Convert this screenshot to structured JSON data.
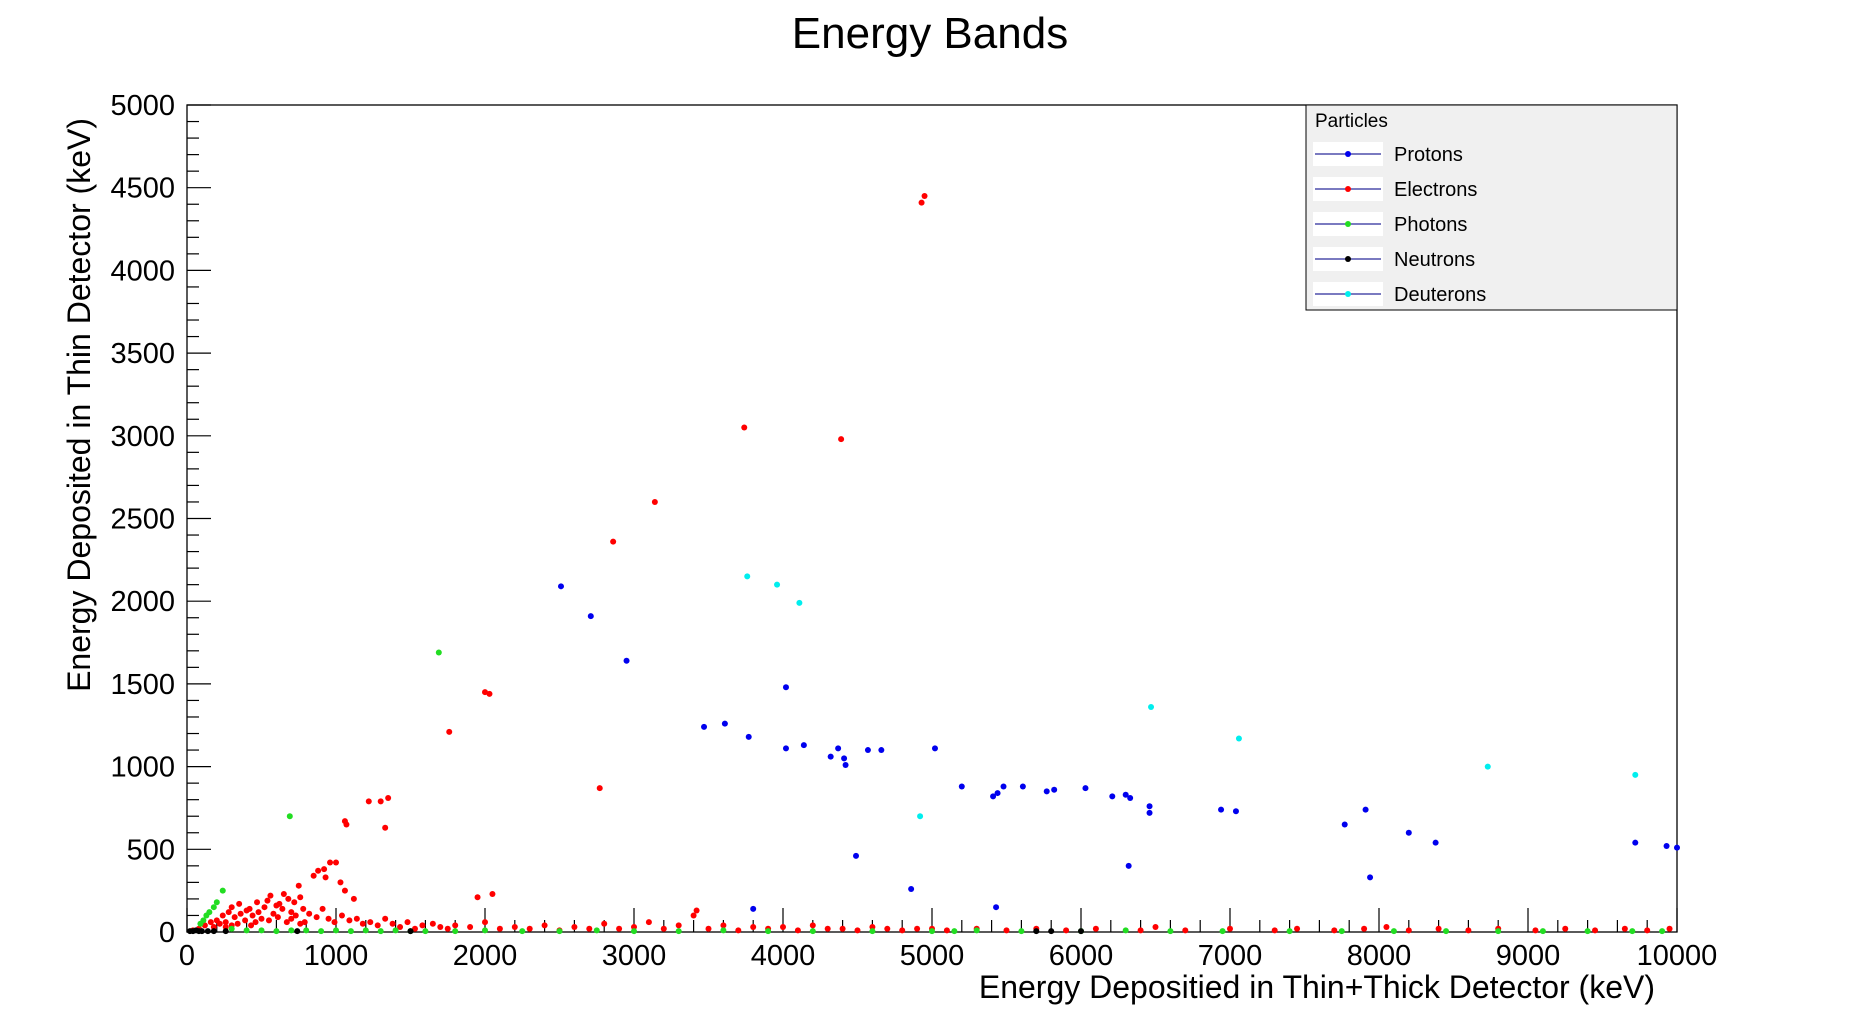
{
  "chart_data": {
    "type": "scatter",
    "title": "Energy Bands",
    "xlabel": "Energy Depositied in Thin+Thick Detector (keV)",
    "ylabel": "Energy Deposited in Thin Detector (keV)",
    "xlim": [
      0,
      10000
    ],
    "ylim": [
      0,
      5000
    ],
    "x_ticks": [
      0,
      1000,
      2000,
      3000,
      4000,
      5000,
      6000,
      7000,
      8000,
      9000,
      10000
    ],
    "y_ticks": [
      0,
      500,
      1000,
      1500,
      2000,
      2500,
      3000,
      3500,
      4000,
      4500,
      5000
    ],
    "grid": false,
    "legend": {
      "title": "Particles",
      "position": "top-right",
      "entries": [
        "Protons",
        "Electrons",
        "Photons",
        "Neutrons",
        "Deuterons"
      ]
    },
    "colors": {
      "Protons": "#0000ee",
      "Electrons": "#ff0000",
      "Photons": "#22dd22",
      "Neutrons": "#000000",
      "Deuterons": "#00eeee"
    },
    "series": [
      {
        "name": "Protons",
        "points": [
          [
            2510,
            2090
          ],
          [
            2710,
            1910
          ],
          [
            2950,
            1640
          ],
          [
            3470,
            1240
          ],
          [
            3610,
            1260
          ],
          [
            3770,
            1180
          ],
          [
            4020,
            1480
          ],
          [
            4020,
            1110
          ],
          [
            4140,
            1130
          ],
          [
            4320,
            1060
          ],
          [
            4370,
            1110
          ],
          [
            4410,
            1050
          ],
          [
            4420,
            1010
          ],
          [
            4570,
            1100
          ],
          [
            4660,
            1100
          ],
          [
            4490,
            460
          ],
          [
            3800,
            140
          ],
          [
            4860,
            260
          ],
          [
            5020,
            1110
          ],
          [
            5200,
            880
          ],
          [
            5410,
            820
          ],
          [
            5440,
            840
          ],
          [
            5480,
            880
          ],
          [
            5610,
            880
          ],
          [
            5770,
            850
          ],
          [
            5820,
            860
          ],
          [
            6030,
            870
          ],
          [
            6210,
            820
          ],
          [
            6300,
            830
          ],
          [
            6330,
            810
          ],
          [
            6460,
            760
          ],
          [
            6460,
            720
          ],
          [
            6320,
            400
          ],
          [
            5430,
            150
          ],
          [
            6940,
            740
          ],
          [
            7040,
            730
          ],
          [
            7770,
            650
          ],
          [
            7910,
            740
          ],
          [
            7940,
            330
          ],
          [
            8200,
            600
          ],
          [
            8380,
            540
          ],
          [
            9720,
            540
          ],
          [
            9930,
            520
          ],
          [
            10000,
            510
          ]
        ]
      },
      {
        "name": "Electrons",
        "points": [
          [
            4930,
            4410
          ],
          [
            4950,
            4450
          ],
          [
            3740,
            3050
          ],
          [
            4390,
            2980
          ],
          [
            3140,
            2600
          ],
          [
            2860,
            2360
          ],
          [
            2000,
            1450
          ],
          [
            2030,
            1440
          ],
          [
            1760,
            1210
          ],
          [
            2770,
            870
          ],
          [
            1220,
            790
          ],
          [
            1300,
            790
          ],
          [
            1350,
            810
          ],
          [
            1330,
            630
          ],
          [
            1060,
            670
          ],
          [
            1070,
            650
          ],
          [
            1000,
            420
          ],
          [
            960,
            420
          ],
          [
            920,
            380
          ],
          [
            880,
            370
          ],
          [
            850,
            340
          ],
          [
            930,
            330
          ],
          [
            1030,
            300
          ],
          [
            1060,
            250
          ],
          [
            1120,
            200
          ],
          [
            750,
            280
          ],
          [
            760,
            210
          ],
          [
            720,
            180
          ],
          [
            680,
            200
          ],
          [
            620,
            170
          ],
          [
            560,
            220
          ],
          [
            520,
            150
          ],
          [
            480,
            120
          ],
          [
            440,
            100
          ],
          [
            400,
            130
          ],
          [
            360,
            110
          ],
          [
            320,
            90
          ],
          [
            280,
            120
          ],
          [
            240,
            100
          ],
          [
            200,
            70
          ],
          [
            160,
            60
          ],
          [
            120,
            40
          ],
          [
            80,
            20
          ],
          [
            40,
            10
          ],
          [
            260,
            60
          ],
          [
            300,
            150
          ],
          [
            350,
            170
          ],
          [
            420,
            140
          ],
          [
            470,
            180
          ],
          [
            540,
            190
          ],
          [
            600,
            160
          ],
          [
            650,
            230
          ],
          [
            700,
            120
          ],
          [
            780,
            140
          ],
          [
            820,
            110
          ],
          [
            870,
            90
          ],
          [
            910,
            140
          ],
          [
            950,
            80
          ],
          [
            990,
            60
          ],
          [
            1040,
            100
          ],
          [
            1090,
            70
          ],
          [
            1140,
            80
          ],
          [
            1180,
            50
          ],
          [
            1230,
            60
          ],
          [
            1280,
            40
          ],
          [
            1330,
            80
          ],
          [
            1380,
            50
          ],
          [
            1430,
            30
          ],
          [
            1480,
            60
          ],
          [
            1530,
            20
          ],
          [
            1580,
            40
          ],
          [
            1650,
            50
          ],
          [
            1700,
            30
          ],
          [
            1750,
            20
          ],
          [
            1800,
            40
          ],
          [
            1900,
            30
          ],
          [
            1950,
            210
          ],
          [
            2000,
            60
          ],
          [
            2050,
            230
          ],
          [
            2100,
            20
          ],
          [
            2200,
            30
          ],
          [
            2300,
            20
          ],
          [
            2400,
            40
          ],
          [
            2500,
            10
          ],
          [
            2600,
            30
          ],
          [
            2700,
            20
          ],
          [
            2800,
            50
          ],
          [
            2900,
            20
          ],
          [
            3000,
            30
          ],
          [
            3100,
            60
          ],
          [
            3200,
            20
          ],
          [
            3300,
            40
          ],
          [
            3400,
            100
          ],
          [
            3420,
            130
          ],
          [
            3500,
            20
          ],
          [
            3600,
            40
          ],
          [
            3700,
            10
          ],
          [
            3800,
            30
          ],
          [
            3900,
            20
          ],
          [
            4000,
            30
          ],
          [
            4100,
            10
          ],
          [
            4200,
            40
          ],
          [
            4300,
            20
          ],
          [
            4400,
            20
          ],
          [
            4500,
            10
          ],
          [
            4600,
            30
          ],
          [
            4700,
            20
          ],
          [
            4800,
            10
          ],
          [
            4900,
            20
          ],
          [
            5000,
            20
          ],
          [
            5100,
            10
          ],
          [
            5300,
            20
          ],
          [
            5500,
            10
          ],
          [
            5700,
            20
          ],
          [
            5900,
            10
          ],
          [
            6100,
            20
          ],
          [
            6400,
            10
          ],
          [
            6500,
            30
          ],
          [
            6700,
            10
          ],
          [
            7000,
            20
          ],
          [
            7300,
            10
          ],
          [
            7450,
            20
          ],
          [
            7700,
            10
          ],
          [
            7900,
            20
          ],
          [
            8050,
            30
          ],
          [
            8200,
            10
          ],
          [
            8400,
            20
          ],
          [
            8600,
            10
          ],
          [
            8800,
            20
          ],
          [
            9050,
            10
          ],
          [
            9250,
            20
          ],
          [
            9450,
            10
          ],
          [
            9650,
            20
          ],
          [
            9800,
            10
          ],
          [
            9950,
            20
          ],
          [
            550,
            70
          ],
          [
            580,
            110
          ],
          [
            610,
            90
          ],
          [
            640,
            140
          ],
          [
            670,
            60
          ],
          [
            700,
            80
          ],
          [
            730,
            100
          ],
          [
            760,
            50
          ],
          [
            790,
            60
          ],
          [
            500,
            80
          ],
          [
            460,
            60
          ],
          [
            430,
            40
          ],
          [
            390,
            70
          ],
          [
            340,
            50
          ],
          [
            300,
            40
          ],
          [
            260,
            30
          ],
          [
            220,
            50
          ],
          [
            180,
            30
          ]
        ]
      },
      {
        "name": "Photons",
        "points": [
          [
            1690,
            1690
          ],
          [
            690,
            700
          ],
          [
            240,
            250
          ],
          [
            200,
            180
          ],
          [
            180,
            150
          ],
          [
            150,
            120
          ],
          [
            130,
            100
          ],
          [
            110,
            70
          ],
          [
            90,
            50
          ],
          [
            300,
            20
          ],
          [
            400,
            10
          ],
          [
            500,
            10
          ],
          [
            600,
            5
          ],
          [
            700,
            10
          ],
          [
            800,
            10
          ],
          [
            900,
            5
          ],
          [
            1000,
            10
          ],
          [
            1100,
            5
          ],
          [
            1200,
            10
          ],
          [
            1300,
            5
          ],
          [
            1400,
            10
          ],
          [
            1500,
            5
          ],
          [
            1600,
            5
          ],
          [
            1800,
            5
          ],
          [
            2000,
            10
          ],
          [
            2250,
            5
          ],
          [
            2500,
            5
          ],
          [
            2750,
            10
          ],
          [
            3000,
            5
          ],
          [
            3300,
            5
          ],
          [
            3600,
            10
          ],
          [
            3900,
            5
          ],
          [
            4200,
            5
          ],
          [
            4600,
            5
          ],
          [
            5000,
            5
          ],
          [
            5150,
            5
          ],
          [
            5300,
            10
          ],
          [
            5600,
            5
          ],
          [
            6000,
            5
          ],
          [
            6300,
            10
          ],
          [
            6600,
            5
          ],
          [
            6950,
            5
          ],
          [
            7400,
            5
          ],
          [
            7750,
            5
          ],
          [
            8100,
            5
          ],
          [
            8450,
            5
          ],
          [
            8800,
            5
          ],
          [
            9100,
            5
          ],
          [
            9400,
            5
          ],
          [
            9700,
            5
          ],
          [
            9900,
            5
          ]
        ]
      },
      {
        "name": "Neutrons",
        "points": [
          [
            20,
            5
          ],
          [
            40,
            5
          ],
          [
            60,
            10
          ],
          [
            80,
            5
          ],
          [
            100,
            5
          ],
          [
            140,
            5
          ],
          [
            180,
            5
          ],
          [
            260,
            5
          ],
          [
            740,
            5
          ],
          [
            1500,
            5
          ],
          [
            5700,
            5
          ],
          [
            5800,
            5
          ],
          [
            6000,
            5
          ]
        ]
      },
      {
        "name": "Deuterons",
        "points": [
          [
            3760,
            2150
          ],
          [
            3960,
            2100
          ],
          [
            4110,
            1990
          ],
          [
            6470,
            1360
          ],
          [
            7060,
            1170
          ],
          [
            8730,
            1000
          ],
          [
            9720,
            950
          ],
          [
            4920,
            700
          ]
        ]
      }
    ]
  }
}
